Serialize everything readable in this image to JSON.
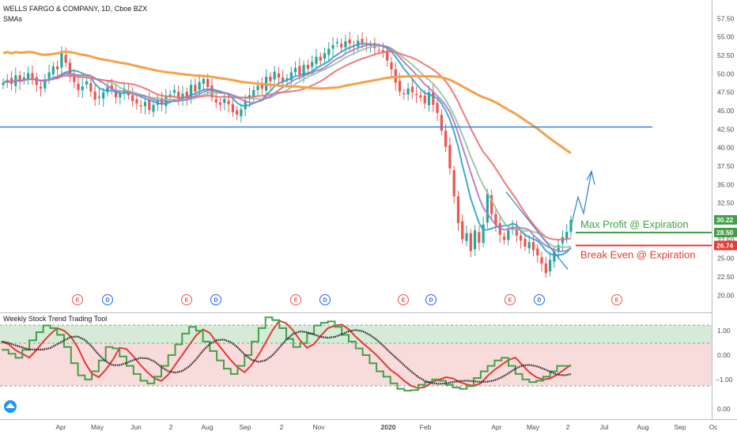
{
  "chart_data": {
    "type": "line",
    "title": "WELLS FARGO & COMPANY, 1D, Cboe BZX",
    "subtitle": "SMAs",
    "colors": {
      "up": "#26a69a",
      "down": "#ef5350",
      "sma_fast": "#26a5c6",
      "sma_mid": "#8ec79b",
      "sma_slow": "#f06a6a",
      "sma_purple": "#b074c8",
      "sma_200": "#f5a14a",
      "sma_blue": "#2962ff",
      "hline": "#2f7fd0",
      "max_profit": "#43a047",
      "break_even": "#e53935",
      "osc_red": "#e53935",
      "osc_green": "#43a047",
      "osc_black": "#222222"
    },
    "price_axis": {
      "ticks": [
        "57.50",
        "55.00",
        "52.50",
        "50.00",
        "47.50",
        "45.00",
        "42.50",
        "40.00",
        "37.50",
        "35.00",
        "32.50",
        "30.00",
        "27.50",
        "25.00",
        "22.50",
        "20.00"
      ],
      "range": [
        19.5,
        58.5
      ]
    },
    "price_tags": [
      {
        "label": "30.22",
        "value": 30.22,
        "color": "#43a047"
      },
      {
        "label": "28.50",
        "value": 28.5,
        "color": "#43a047"
      },
      {
        "label": "26.74",
        "value": 26.74,
        "color": "#e53935"
      }
    ],
    "horizontal_line": {
      "value": 42.8,
      "label": ""
    },
    "annotations": {
      "max_profit": {
        "text": "Max Profit @ Expiration",
        "value": 28.5
      },
      "break_even": {
        "text": "Break Even @ Expiration",
        "value": 26.74
      }
    },
    "x_axis": {
      "labels": [
        "Apr",
        "May",
        "Jun",
        "2",
        "Aug",
        "Sep",
        "2",
        "Nov",
        "2020",
        "Feb",
        "Apr",
        "May",
        "2",
        "Jul",
        "Aug",
        "Sep",
        "Oc"
      ]
    },
    "events": [
      "E",
      "D",
      "E",
      "D",
      "E",
      "D",
      "E",
      "D",
      "E",
      "D",
      "E"
    ],
    "close": [
      48.8,
      49.2,
      48.6,
      49.8,
      48.9,
      49.5,
      50.1,
      49.3,
      48.5,
      48.0,
      49.1,
      50.2,
      51.0,
      50.6,
      52.8,
      51.5,
      49.6,
      48.9,
      47.8,
      48.3,
      49.0,
      47.6,
      46.5,
      46.9,
      47.5,
      48.2,
      47.9,
      46.8,
      47.3,
      48.0,
      47.1,
      46.3,
      46.0,
      45.6,
      46.2,
      45.1,
      45.8,
      46.4,
      45.9,
      46.9,
      47.2,
      47.8,
      46.6,
      47.3,
      46.8,
      48.5,
      47.6,
      48.9,
      49.3,
      48.2,
      46.8,
      46.1,
      45.8,
      46.6,
      45.9,
      44.8,
      44.5,
      45.2,
      46.3,
      47.1,
      47.8,
      48.4,
      48.0,
      49.6,
      49.0,
      50.3,
      49.5,
      48.9,
      49.4,
      50.2,
      50.8,
      49.9,
      51.2,
      50.7,
      51.6,
      52.3,
      51.8,
      52.8,
      53.4,
      53.9,
      54.3,
      53.6,
      54.4,
      54.1,
      53.7,
      54.5,
      54.2,
      53.8,
      53.9,
      53.5,
      53.2,
      52.9,
      51.8,
      50.6,
      48.8,
      47.6,
      47.2,
      48.0,
      47.5,
      47.1,
      46.8,
      46.0,
      47.5,
      45.8,
      44.7,
      42.3,
      40.1,
      37.2,
      33.4,
      29.8,
      27.6,
      28.4,
      26.0,
      28.8,
      27.1,
      29.6,
      33.8,
      31.0,
      29.5,
      28.2,
      27.5,
      28.8,
      29.3,
      28.1,
      27.4,
      26.6,
      27.2,
      26.1,
      25.4,
      24.3,
      23.0,
      24.8,
      25.9,
      26.8,
      27.9,
      28.6,
      30.2
    ],
    "osc_red": [
      0.55,
      0.45,
      0.2,
      0.05,
      -0.1,
      0.2,
      0.55,
      0.85,
      1.1,
      1.0,
      0.75,
      0.3,
      -0.3,
      -0.75,
      -0.9,
      -0.6,
      -0.2,
      0.3,
      0.25,
      -0.05,
      -0.4,
      -0.7,
      -0.95,
      -1.05,
      -0.8,
      -0.4,
      0.0,
      0.4,
      0.8,
      1.05,
      0.9,
      0.5,
      0.15,
      -0.2,
      -0.5,
      -0.7,
      -0.4,
      0.0,
      0.5,
      1.0,
      1.4,
      1.3,
      1.0,
      0.6,
      0.3,
      0.45,
      0.8,
      1.1,
      1.2,
      1.25,
      1.05,
      0.75,
      0.5,
      0.25,
      0.0,
      -0.3,
      -0.6,
      -0.8,
      -1.05,
      -1.25,
      -1.35,
      -1.3,
      -1.1,
      -1.0,
      -0.9,
      -0.95,
      -1.1,
      -1.2,
      -1.25,
      -1.15,
      -0.85,
      -0.6,
      -0.4,
      -0.2,
      -0.1,
      -0.4,
      -0.7,
      -0.9,
      -1.0,
      -0.95,
      -0.8,
      -0.6,
      -0.4
    ]
  }
}
